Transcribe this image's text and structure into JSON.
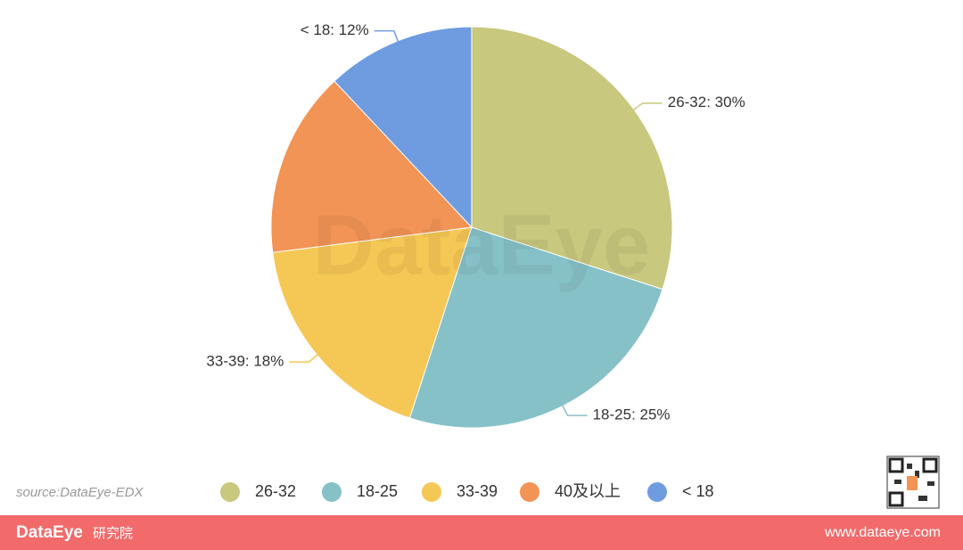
{
  "chart_data": {
    "type": "pie",
    "categories": [
      "26-32",
      "18-25",
      "33-39",
      "40及以上",
      "< 18"
    ],
    "values": [
      30,
      25,
      18,
      15,
      12
    ],
    "value_labels": [
      "26-32: 30%",
      "18-25: 25%",
      "33-39: 18%",
      null,
      "< 18: 12%"
    ],
    "colors": [
      "#c8c87e",
      "#86c1c8",
      "#f5c755",
      "#f29455",
      "#6f9ce0"
    ],
    "legend": "bottom"
  },
  "watermark": "DataEye",
  "source": "source:DataEye-EDX",
  "footer": {
    "brand": "DataEye",
    "brand_suffix": "研究院",
    "url": "www.dataeye.com"
  }
}
